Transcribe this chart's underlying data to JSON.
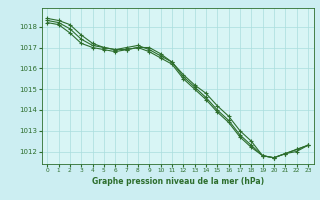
{
  "background_color": "#cceef2",
  "plot_bg_color": "#d8f5f5",
  "line_color": "#2d6e2d",
  "grid_color": "#aadddd",
  "xlabel": "Graphe pression niveau de la mer (hPa)",
  "xlim": [
    -0.5,
    23.5
  ],
  "ylim": [
    1011.4,
    1018.9
  ],
  "yticks": [
    1012,
    1013,
    1014,
    1015,
    1016,
    1017,
    1018
  ],
  "xticks": [
    0,
    1,
    2,
    3,
    4,
    5,
    6,
    7,
    8,
    9,
    10,
    11,
    12,
    13,
    14,
    15,
    16,
    17,
    18,
    19,
    20,
    21,
    22,
    23
  ],
  "series1": [
    1018.4,
    1018.3,
    1018.1,
    1017.6,
    1017.2,
    1017.0,
    1016.9,
    1016.9,
    1017.0,
    1017.0,
    1016.7,
    1016.3,
    1015.7,
    1015.2,
    1014.8,
    1014.2,
    1013.7,
    1013.0,
    1012.5,
    1011.8,
    1011.7,
    1011.9,
    1012.1,
    1012.3
  ],
  "series2": [
    1018.2,
    1018.1,
    1017.7,
    1017.2,
    1017.0,
    1016.9,
    1016.8,
    1016.9,
    1017.0,
    1016.8,
    1016.5,
    1016.2,
    1015.5,
    1015.0,
    1014.5,
    1013.9,
    1013.4,
    1012.7,
    1012.2,
    1011.8,
    1011.7,
    1011.9,
    1012.0,
    1012.3
  ],
  "series3": [
    1018.3,
    1018.2,
    1017.9,
    1017.4,
    1017.1,
    1017.0,
    1016.9,
    1017.0,
    1017.1,
    1016.9,
    1016.6,
    1016.3,
    1015.6,
    1015.1,
    1014.6,
    1014.0,
    1013.5,
    1012.8,
    1012.3,
    1011.8,
    1011.7,
    1011.9,
    1012.1,
    1012.3
  ]
}
